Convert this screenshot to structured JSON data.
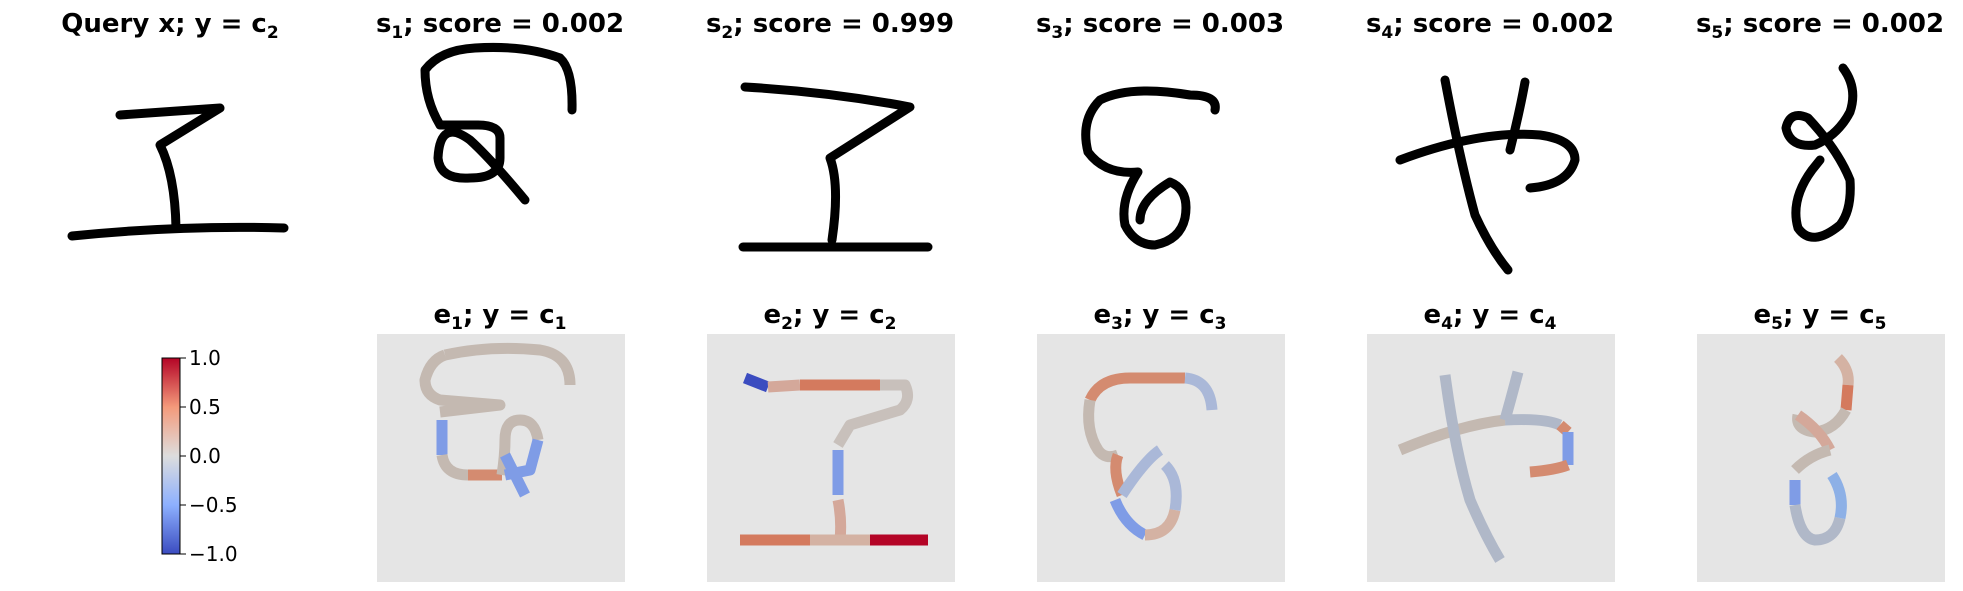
{
  "top_row": {
    "titles": [
      {
        "pre": "Query x; y = c",
        "sub": "2",
        "post": ""
      },
      {
        "pre": "s",
        "sub": "1",
        "post": "; score = 0.002"
      },
      {
        "pre": "s",
        "sub": "2",
        "post": "; score = 0.999"
      },
      {
        "pre": "s",
        "sub": "3",
        "post": "; score = 0.003"
      },
      {
        "pre": "s",
        "sub": "4",
        "post": "; score = 0.002"
      },
      {
        "pre": "s",
        "sub": "5",
        "post": "; score = 0.002"
      }
    ]
  },
  "bottom_row": {
    "titles": [
      {
        "pre": "e",
        "sub": "1",
        "mid": "; y = c",
        "sub2": "1"
      },
      {
        "pre": "e",
        "sub": "2",
        "mid": "; y = c",
        "sub2": "2"
      },
      {
        "pre": "e",
        "sub": "3",
        "mid": "; y = c",
        "sub2": "3"
      },
      {
        "pre": "e",
        "sub": "4",
        "mid": "; y = c",
        "sub2": "4"
      },
      {
        "pre": "e",
        "sub": "5",
        "mid": "; y = c",
        "sub2": "5"
      }
    ]
  },
  "colorbar": {
    "ticks": [
      "1.0",
      "0.5",
      "0.0",
      "−0.5",
      "−1.0"
    ],
    "colormap": "coolwarm",
    "range": [
      -1.0,
      1.0
    ],
    "colors": {
      "high": "#b40426",
      "mid": "#dddddd",
      "low": "#3b4cc0"
    }
  },
  "colors": {
    "heatmap_background": "#e5e5e5",
    "ink": "#000000"
  }
}
